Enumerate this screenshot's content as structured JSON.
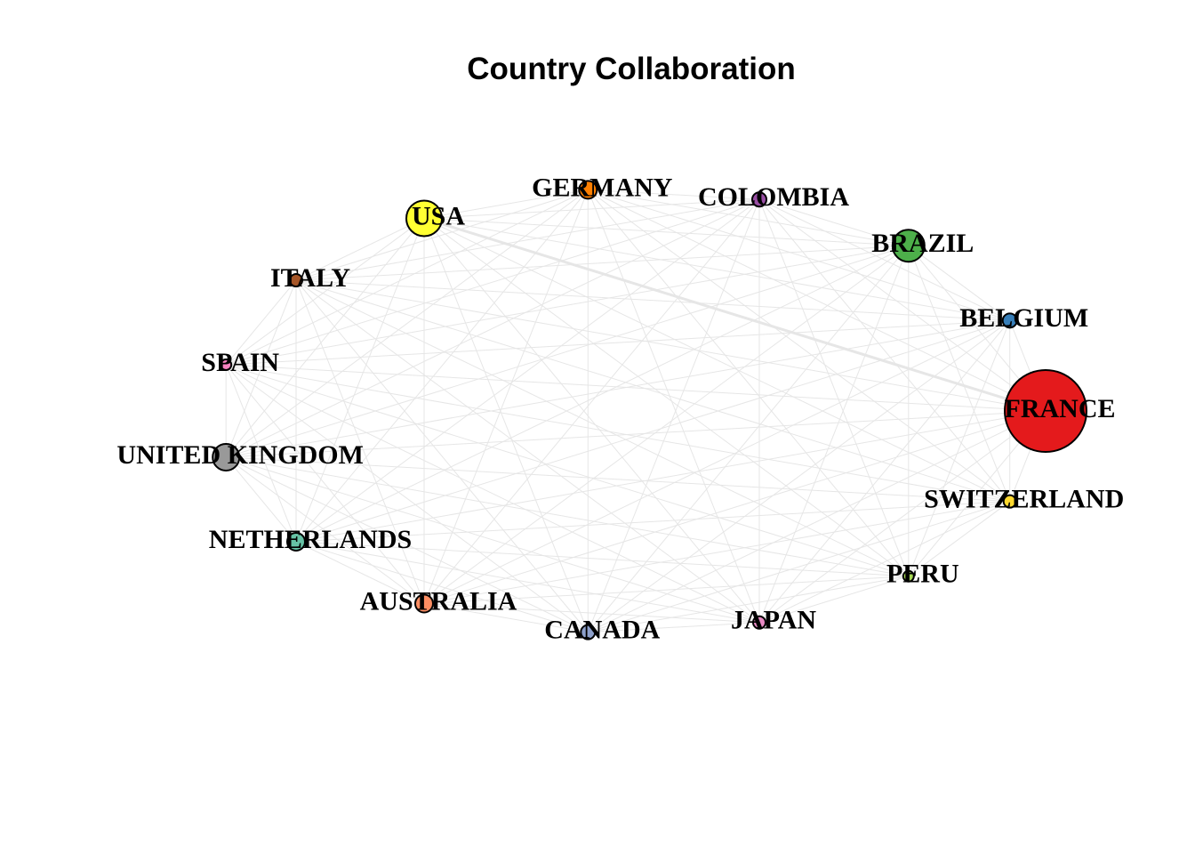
{
  "title": "Country Collaboration",
  "chart_data": {
    "type": "network",
    "layout": "circle",
    "edge_color": "#e6e6e6",
    "node_border_color": "#000000",
    "nodes": [
      {
        "id": "FRANCE",
        "label": "FRANCE",
        "color": "#e41a1c",
        "size": 46
      },
      {
        "id": "BELGIUM",
        "label": "BELGIUM",
        "color": "#377eb8",
        "size": 8
      },
      {
        "id": "BRAZIL",
        "label": "BRAZIL",
        "color": "#4daf4a",
        "size": 18
      },
      {
        "id": "COLOMBIA",
        "label": "COLOMBIA",
        "color": "#984ea3",
        "size": 8
      },
      {
        "id": "GERMANY",
        "label": "GERMANY",
        "color": "#ff7f00",
        "size": 10
      },
      {
        "id": "USA",
        "label": "USA",
        "color": "#ffff33",
        "size": 20
      },
      {
        "id": "ITALY",
        "label": "ITALY",
        "color": "#a65628",
        "size": 7
      },
      {
        "id": "SPAIN",
        "label": "SPAIN",
        "color": "#f781bf",
        "size": 6
      },
      {
        "id": "UNITED KINGDOM",
        "label": "UNITED KINGDOM",
        "color": "#999999",
        "size": 15
      },
      {
        "id": "NETHERLANDS",
        "label": "NETHERLANDS",
        "color": "#66c2a5",
        "size": 10
      },
      {
        "id": "AUSTRALIA",
        "label": "AUSTRALIA",
        "color": "#fc8d62",
        "size": 10
      },
      {
        "id": "CANADA",
        "label": "CANADA",
        "color": "#8da0cb",
        "size": 8
      },
      {
        "id": "JAPAN",
        "label": "JAPAN",
        "color": "#e78ac3",
        "size": 7
      },
      {
        "id": "PERU",
        "label": "PERU",
        "color": "#a6d854",
        "size": 6
      },
      {
        "id": "SWITZERLAND",
        "label": "SWITZERLAND",
        "color": "#ffd92f",
        "size": 7
      }
    ],
    "strong_edges": [
      [
        "USA",
        "FRANCE"
      ]
    ]
  }
}
